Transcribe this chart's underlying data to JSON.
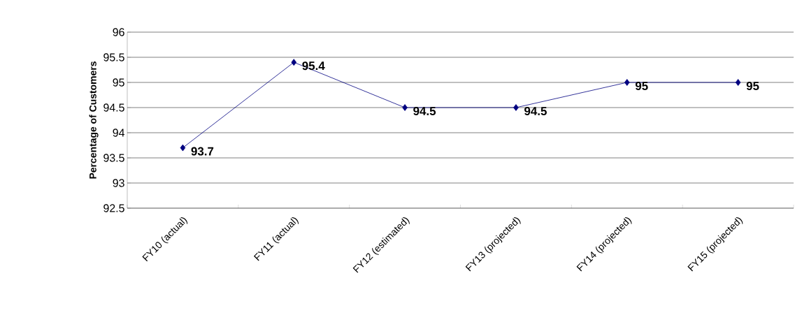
{
  "chart_data": {
    "type": "line",
    "ylabel": "Percentage of Customers",
    "categories": [
      "FY10 (actual)",
      "FY11 (actual)",
      "FY12 (estimated)",
      "FY13 (projected)",
      "FY14 (projected)",
      "FY15 (projected)"
    ],
    "values": [
      93.7,
      95.4,
      94.5,
      94.5,
      95,
      95
    ],
    "value_labels": [
      "93.7",
      "95.4",
      "94.5",
      "94.5",
      "95",
      "95"
    ],
    "color": "#000080",
    "marker": "diamond",
    "line_style": "solid",
    "ylim": [
      92.5,
      96
    ],
    "yticks": [
      92.5,
      93,
      93.5,
      94,
      94.5,
      95,
      95.5,
      96
    ],
    "grid": "y"
  }
}
